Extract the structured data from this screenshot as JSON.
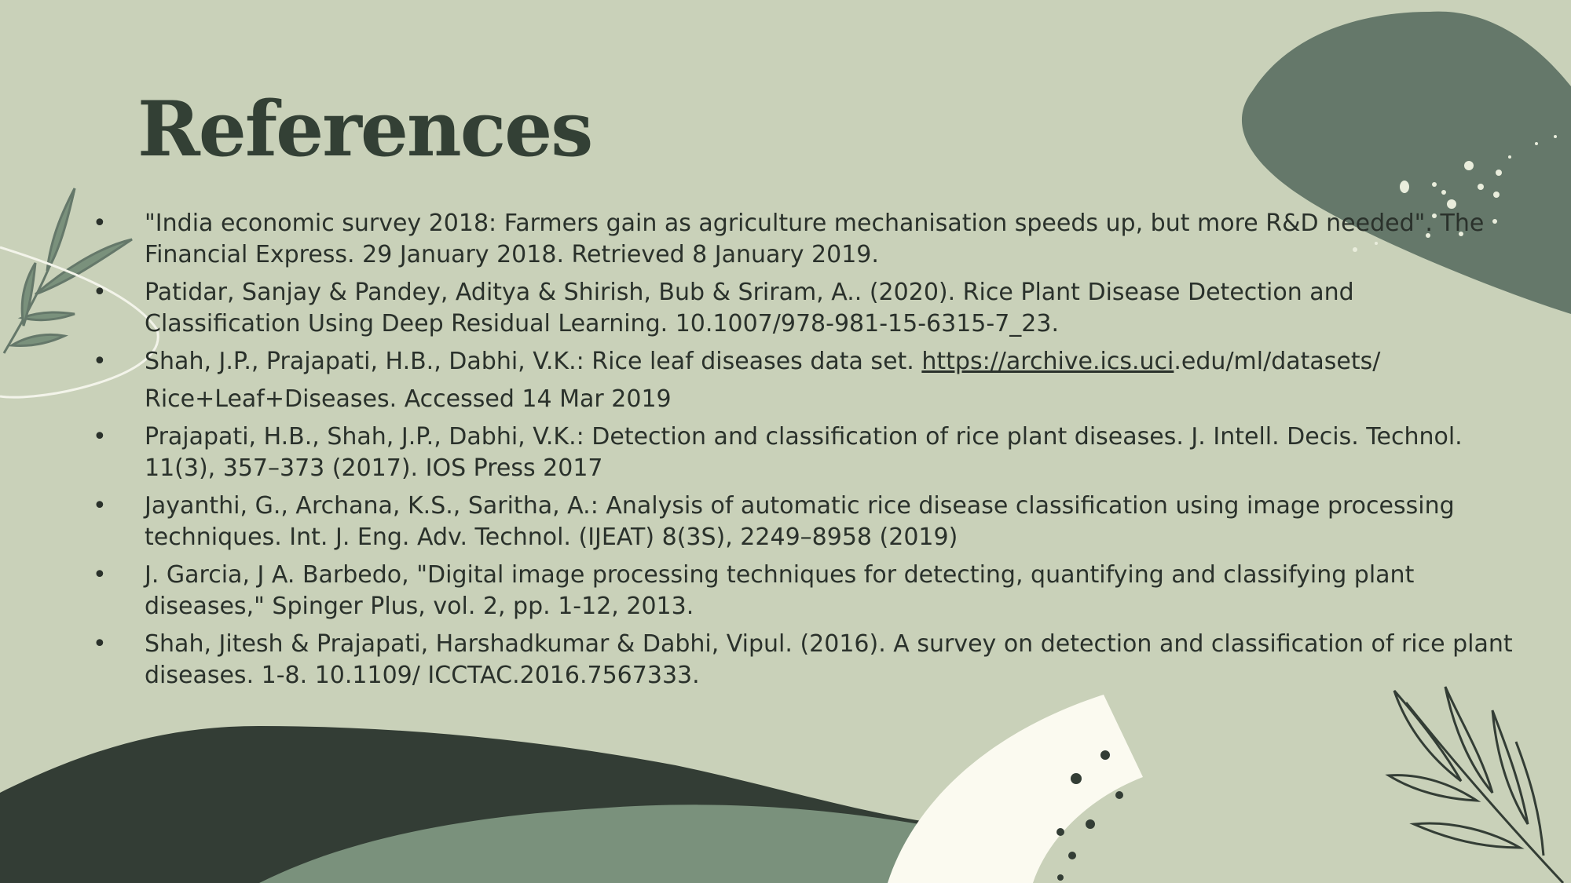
{
  "slide": {
    "title": "References",
    "colors": {
      "background": "#c9d1b9",
      "dark_green": "#333d35",
      "mid_green": "#65786a",
      "wave_green": "#7a917c",
      "cream": "#fbfaf0",
      "text": "#2a312b"
    },
    "decor_icons": [
      "leaf-branch-icon",
      "fern-icon",
      "dot-cluster-icon",
      "blob-shape",
      "wave-shape",
      "arc-shape"
    ],
    "references": [
      {
        "bullet": "•",
        "text": "\"India economic survey 2018: Farmers gain as agriculture mechanisation speeds up, but more R&D needed\". The Financial Express. 29 January 2018. Retrieved 8 January 2019."
      },
      {
        "bullet": "•",
        "text": "Patidar, Sanjay & Pandey, Aditya & Shirish, Bub & Sriram, A.. (2020). Rice Plant Disease Detection and Classification Using Deep Residual Learning. 10.1007/978-981-15-6315-7_23."
      },
      {
        "bullet": "•",
        "text_before": "Shah, J.P., Prajapati, H.B., Dabhi, V.K.: Rice leaf diseases data set. ",
        "link": "https://archive.ics.uci",
        "text_after": ".edu/ml/datasets/",
        "continuation": "Rice+Leaf+Diseases. Accessed 14 Mar 2019"
      },
      {
        "bullet": "•",
        "text": "Prajapati, H.B., Shah, J.P., Dabhi, V.K.: Detection and classification of rice plant diseases. J. Intell. Decis. Technol. 11(3), 357–373 (2017). IOS Press 2017"
      },
      {
        "bullet": "•",
        "text": "Jayanthi, G., Archana, K.S., Saritha, A.: Analysis of automatic rice disease classification using image processing techniques. Int. J. Eng. Adv. Technol. (IJEAT) 8(3S), 2249–8958 (2019)"
      },
      {
        "bullet": "•",
        "text": "J. Garcia, J A. Barbedo, \"Digital image processing techniques for detecting, quantifying and classifying plant diseases,\" Spinger Plus, vol. 2, pp. 1-12, 2013."
      },
      {
        "bullet": "•",
        "text": "Shah, Jitesh & Prajapati, Harshadkumar & Dabhi, Vipul. (2016). A survey on detection and classification of rice plant diseases. 1-8. 10.1109/ ICCTAC.2016.7567333."
      }
    ]
  }
}
